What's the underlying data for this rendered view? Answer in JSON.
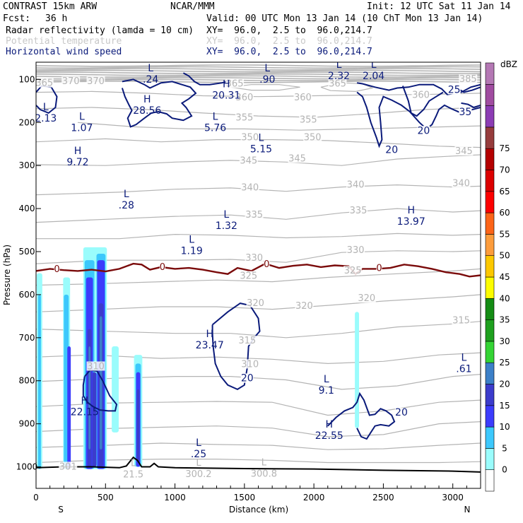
{
  "header": {
    "model": "CONTRAST 15km ARW",
    "center": "NCAR/MMM",
    "init": "Init: 12 UTC Sat 11 Jan 14",
    "fcst_label": "Fcst:",
    "fcst_value": "36 h",
    "valid": "Valid: 00 UTC Mon 13 Jan 14 (10 ChT Mon 13 Jan 14)",
    "fields": [
      {
        "name": "Radar reflectivity (lamda = 10 cm)",
        "xy": "XY=  96.0,  2.5 to  96.0,214.7",
        "color": "#000000"
      },
      {
        "name": "Potential temperature",
        "xy": "XY=  96.0,  2.5 to  96.0,214.7",
        "color": "#c8c8c8"
      },
      {
        "name": "Horizontal wind speed",
        "xy": "XY=  96.0,  2.5 to  96.0,214.7",
        "color": "#0a1a7a"
      }
    ]
  },
  "chart_data": {
    "type": "cross-section contour",
    "xlabel": "Distance (km)",
    "ylabel": "Pressure (hPa)",
    "xlim": [
      0,
      3200
    ],
    "ylim": [
      1050,
      60
    ],
    "x_ticks": [
      0,
      500,
      1000,
      1500,
      2000,
      2500,
      3000
    ],
    "y_ticks": [
      100,
      200,
      300,
      400,
      500,
      600,
      700,
      800,
      900,
      1000
    ],
    "x_end_labels": {
      "left": "S",
      "right": "N"
    },
    "colorbar": {
      "unit": "dBZ",
      "levels": [
        0,
        5,
        10,
        15,
        20,
        25,
        30,
        35,
        40,
        45,
        50,
        55,
        60,
        65,
        70,
        75
      ],
      "colors": [
        "#ffffff",
        "#9afcfc",
        "#3cc8fc",
        "#3c3cfc",
        "#3c3ccc",
        "#3c80c8",
        "#34d434",
        "#1ea01e",
        "#148c14",
        "#fcfc00",
        "#fcc800",
        "#fc9c3c",
        "#fc6418",
        "#fc0000",
        "#dc0000",
        "#b40000",
        "#963c3c",
        "#8c3cb4",
        "#a04ca0",
        "#b478b4"
      ]
    },
    "theta_labels": [
      {
        "t": "365",
        "x": 60,
        "p": 112
      },
      {
        "t": "370",
        "x": 250,
        "p": 108
      },
      {
        "t": "370",
        "x": 430,
        "p": 108
      },
      {
        "t": "365",
        "x": 1430,
        "p": 113
      },
      {
        "t": "365",
        "x": 2170,
        "p": 113
      },
      {
        "t": "385",
        "x": 3110,
        "p": 103
      },
      {
        "t": "360",
        "x": 1500,
        "p": 145
      },
      {
        "t": "360",
        "x": 1920,
        "p": 145
      },
      {
        "t": "360",
        "x": 2770,
        "p": 140
      },
      {
        "t": "355",
        "x": 1500,
        "p": 192
      },
      {
        "t": "355",
        "x": 1960,
        "p": 197
      },
      {
        "t": "350",
        "x": 1540,
        "p": 238
      },
      {
        "t": "350",
        "x": 1990,
        "p": 238
      },
      {
        "t": "345",
        "x": 1530,
        "p": 292
      },
      {
        "t": "345",
        "x": 1880,
        "p": 287
      },
      {
        "t": "345",
        "x": 3080,
        "p": 270
      },
      {
        "t": "340",
        "x": 1540,
        "p": 355
      },
      {
        "t": "340",
        "x": 2300,
        "p": 348
      },
      {
        "t": "340",
        "x": 3060,
        "p": 345
      },
      {
        "t": "335",
        "x": 1570,
        "p": 418
      },
      {
        "t": "335",
        "x": 2320,
        "p": 408
      },
      {
        "t": "330",
        "x": 1570,
        "p": 518
      },
      {
        "t": "330",
        "x": 2300,
        "p": 500
      },
      {
        "t": "325",
        "x": 1530,
        "p": 560
      },
      {
        "t": "325",
        "x": 2280,
        "p": 548
      },
      {
        "t": "320",
        "x": 1580,
        "p": 623
      },
      {
        "t": "320",
        "x": 1930,
        "p": 630
      },
      {
        "t": "320",
        "x": 2380,
        "p": 612
      },
      {
        "t": "315",
        "x": 1520,
        "p": 710
      },
      {
        "t": "315",
        "x": 3060,
        "p": 663
      },
      {
        "t": "310",
        "x": 430,
        "p": 770
      },
      {
        "t": "310",
        "x": 1540,
        "p": 765
      },
      {
        "t": "301",
        "x": 230,
        "p": 1003
      }
    ],
    "extrema": [
      {
        "k": "L",
        "v": "2.13",
        "x": 70,
        "p": 178
      },
      {
        "k": "L",
        "v": ".24",
        "x": 825,
        "p": 88
      },
      {
        "k": "H",
        "v": "28.56",
        "x": 800,
        "p": 160
      },
      {
        "k": "H",
        "v": "20.31",
        "x": 1370,
        "p": 125
      },
      {
        "k": "L",
        "v": ".90",
        "x": 1665,
        "p": 88
      },
      {
        "k": "L",
        "v": "2.32",
        "x": 2180,
        "p": 80
      },
      {
        "k": "L",
        "v": "2.04",
        "x": 2430,
        "p": 80
      },
      {
        "k": "L",
        "v": "1.07",
        "x": 330,
        "p": 200
      },
      {
        "k": "L",
        "v": "5.76",
        "x": 1290,
        "p": 200
      },
      {
        "k": "L",
        "v": "5.15",
        "x": 1620,
        "p": 250
      },
      {
        "k": "H",
        "v": "9.72",
        "x": 300,
        "p": 280
      },
      {
        "k": "L",
        "v": ".28",
        "x": 650,
        "p": 380
      },
      {
        "k": "L",
        "v": "1.32",
        "x": 1370,
        "p": 428
      },
      {
        "k": "H",
        "v": "13.97",
        "x": 2700,
        "p": 418
      },
      {
        "k": "L",
        "v": "1.19",
        "x": 1120,
        "p": 486
      },
      {
        "k": "H",
        "v": "23.47",
        "x": 1250,
        "p": 705
      },
      {
        "k": "L",
        "v": "9.1",
        "x": 2090,
        "p": 810
      },
      {
        "k": "L",
        "v": ".61",
        "x": 3080,
        "p": 760
      },
      {
        "k": "H",
        "v": "22.15",
        "x": 350,
        "p": 860
      },
      {
        "k": "H",
        "v": "22.55",
        "x": 2110,
        "p": 915
      },
      {
        "k": "L",
        "v": ".25",
        "x": 1170,
        "p": 958
      },
      {
        "k": "L",
        "v": "300.2",
        "x": 1170,
        "p": 1004
      },
      {
        "k": "L",
        "v": "300.8",
        "x": 1640,
        "p": 1003
      },
      {
        "k": "L",
        "v": "21.5",
        "x": 700,
        "p": 1005
      }
    ],
    "wind_labels": [
      {
        "t": "25",
        "x": 3010,
        "p": 128
      },
      {
        "t": "35",
        "x": 3090,
        "p": 180
      },
      {
        "t": "20",
        "x": 2790,
        "p": 223
      },
      {
        "t": "20",
        "x": 2560,
        "p": 268
      },
      {
        "t": "20",
        "x": 1520,
        "p": 798
      },
      {
        "t": "20",
        "x": 2630,
        "p": 878
      }
    ],
    "freezing_labels": [
      {
        "t": "0",
        "x": 150,
        "p": 543
      },
      {
        "t": "0",
        "x": 910,
        "p": 538
      },
      {
        "t": "0",
        "x": 1660,
        "p": 531
      },
      {
        "t": "0",
        "x": 2470,
        "p": 540
      }
    ]
  }
}
